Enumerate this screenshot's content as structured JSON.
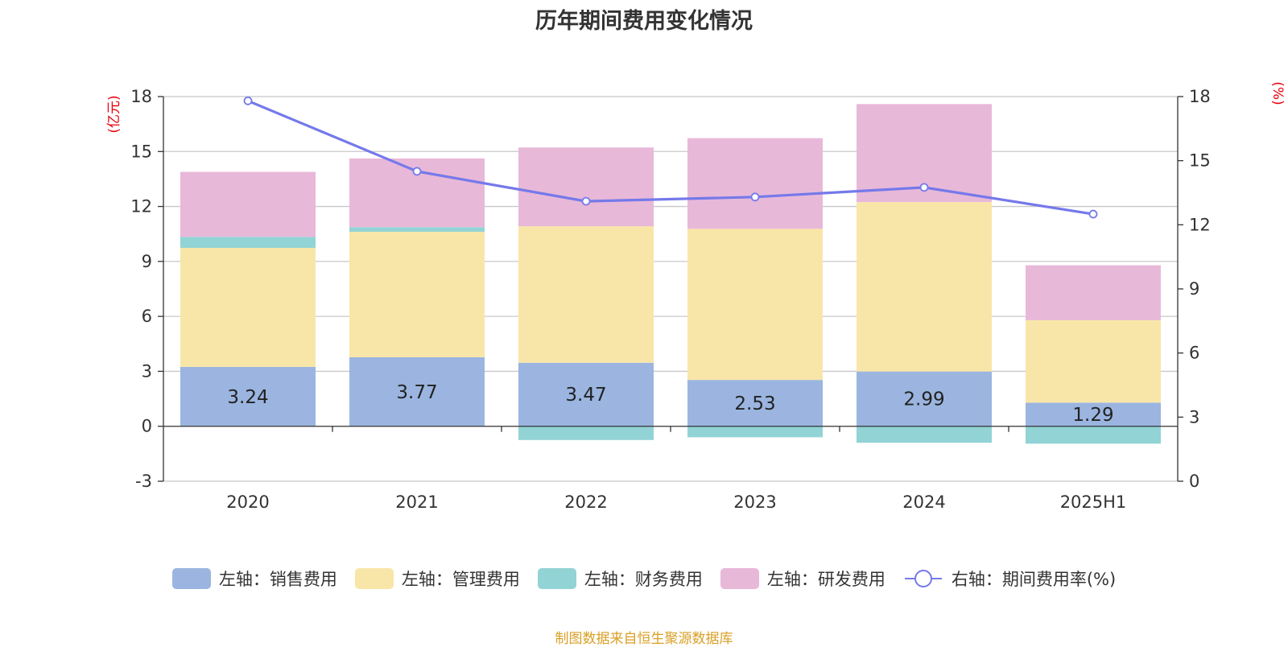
{
  "title": "历年期间费用变化情况",
  "source_note": "制图数据来自恒生聚源数据库",
  "colors": {
    "sales": "#9bb5e0",
    "admin": "#f8e6a8",
    "finance": "#92d3d5",
    "rnd": "#e8b8d9",
    "line": "#7579ea",
    "unit_text": "#e8000b"
  },
  "legend": [
    {
      "key": "sales",
      "label": "左轴：销售费用",
      "icon": "swatch"
    },
    {
      "key": "admin",
      "label": "左轴：管理费用",
      "icon": "swatch"
    },
    {
      "key": "finance",
      "label": "左轴：财务费用",
      "icon": "swatch"
    },
    {
      "key": "rnd",
      "label": "左轴：研发费用",
      "icon": "swatch"
    },
    {
      "key": "line",
      "label": "右轴：期间费用率(%)",
      "icon": "line-circle"
    }
  ],
  "chart_data": {
    "type": "bar",
    "stacked": true,
    "categories": [
      "2020",
      "2021",
      "2022",
      "2023",
      "2024",
      "2025H1"
    ],
    "left_axis": {
      "unit": "(亿元)",
      "ylim": [
        -3,
        18
      ],
      "ticks": [
        -3,
        0,
        3,
        6,
        9,
        12,
        15,
        18
      ]
    },
    "right_axis": {
      "unit": "(%)",
      "ylim": [
        0,
        18
      ],
      "ticks": [
        0,
        3,
        6,
        9,
        12,
        15,
        18
      ]
    },
    "grid": true,
    "legend_position": "bottom",
    "series": [
      {
        "key": "sales",
        "name": "左轴：销售费用",
        "axis": "left",
        "values": [
          3.24,
          3.77,
          3.47,
          2.53,
          2.99,
          1.29
        ],
        "show_labels": true
      },
      {
        "key": "admin",
        "name": "左轴：管理费用",
        "axis": "left",
        "values": [
          6.5,
          6.85,
          7.45,
          8.25,
          9.25,
          4.5
        ]
      },
      {
        "key": "finance",
        "name": "左轴：财务费用",
        "axis": "left",
        "values": [
          0.6,
          0.25,
          -0.75,
          -0.6,
          -0.9,
          -0.95
        ]
      },
      {
        "key": "rnd",
        "name": "左轴：研发费用",
        "axis": "left",
        "values": [
          3.55,
          3.75,
          4.3,
          4.95,
          5.35,
          3.0
        ]
      },
      {
        "key": "line",
        "name": "右轴：期间费用率(%)",
        "axis": "right",
        "type": "line",
        "values": [
          17.8,
          14.5,
          13.1,
          13.3,
          13.75,
          12.5
        ]
      }
    ]
  }
}
